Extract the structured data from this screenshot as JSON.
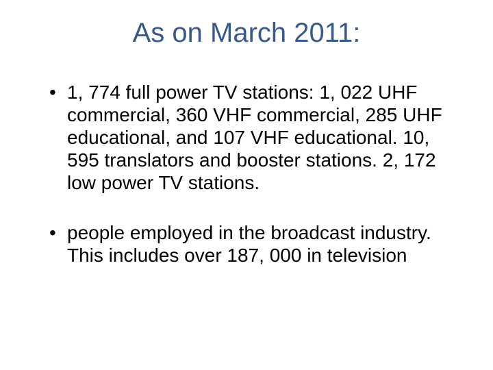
{
  "slide": {
    "title": "As on March 2011:",
    "bullets": [
      "1, 774 full power TV stations: 1, 022 UHF commercial, 360 VHF commercial, 285 UHF educational, and 107 VHF educational. 10, 595 translators and booster stations. 2, 172 low power TV stations.",
      "people employed in the broadcast industry. This includes over 187, 000 in television"
    ],
    "title_color": "#385a8a",
    "text_color": "#000000",
    "background_color": "#ffffff",
    "title_fontsize": 40,
    "body_fontsize": 28,
    "font_family": "Segoe UI Light"
  }
}
